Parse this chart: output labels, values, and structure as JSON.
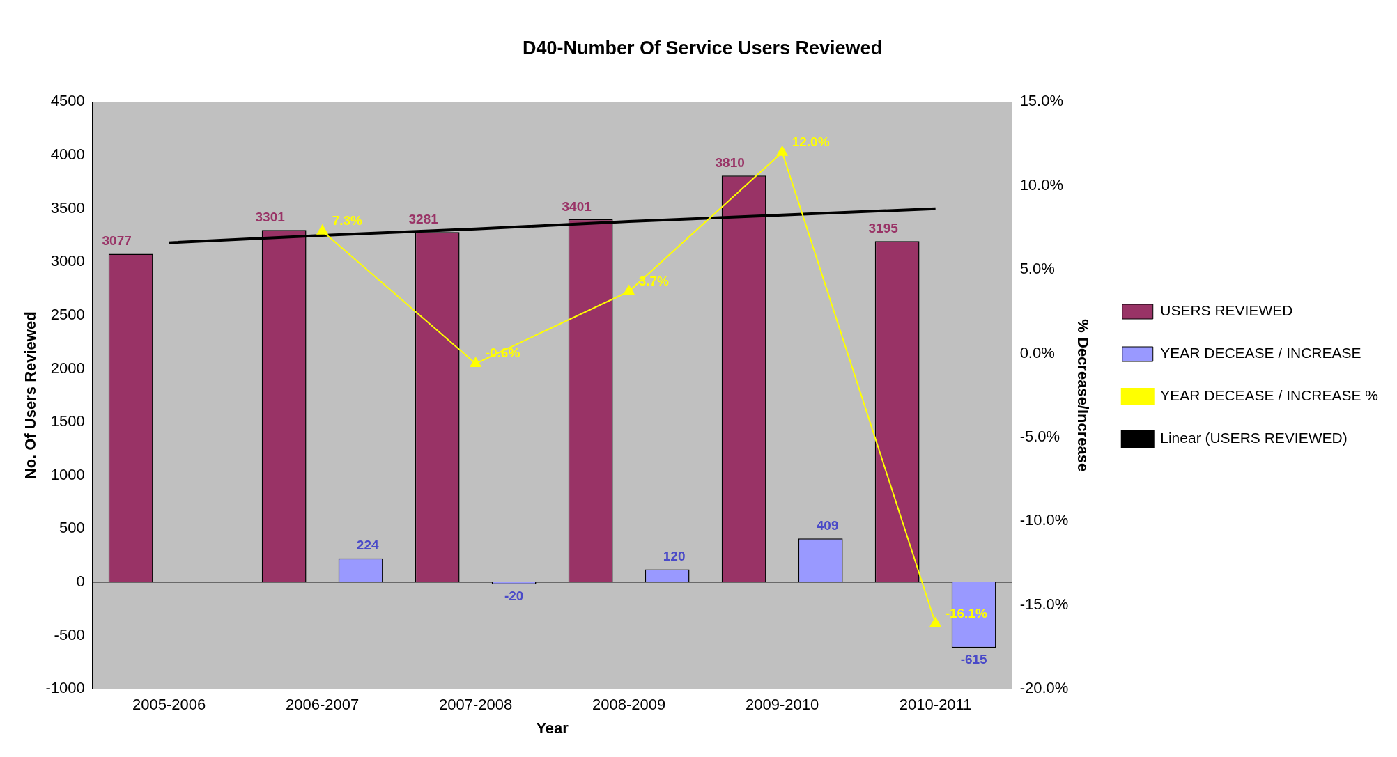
{
  "chart_data": {
    "type": "bar",
    "title": "D40-Number Of Service Users Reviewed",
    "xlabel": "Year",
    "ylabel": "No. Of Users Reviewed",
    "y2label": "% Decrease/Increase",
    "categories": [
      "2005-2006",
      "2006-2007",
      "2007-2008",
      "2008-2009",
      "2009-2010",
      "2010-2011"
    ],
    "series": [
      {
        "name": "USERS REVIEWED",
        "color": "#993366",
        "values": [
          3077,
          3301,
          3281,
          3401,
          3810,
          3195
        ],
        "value_labels": [
          "3077",
          "3301",
          "3281",
          "3401",
          "3810",
          "3195"
        ]
      },
      {
        "name": "YEAR DECEASE / INCREASE",
        "color": "#9999ff",
        "values": [
          null,
          224,
          -20,
          120,
          409,
          -615
        ],
        "value_labels": [
          null,
          "224",
          "-20",
          "120",
          "409",
          "-615"
        ]
      },
      {
        "name": "YEAR DECEASE / INCREASE %",
        "type": "line",
        "axis": "y2",
        "color": "#ffff00",
        "marker": "triangle",
        "values": [
          null,
          7.3,
          -0.6,
          3.7,
          12.0,
          -16.1
        ],
        "value_labels": [
          null,
          "7.3%",
          "-0.6%",
          "3.7%",
          "12.0%",
          "-16.1%"
        ]
      },
      {
        "name": "Linear (USERS REVIEWED)",
        "type": "line",
        "color": "#000000",
        "marker": "none",
        "values": [
          3180,
          3250,
          3310,
          3380,
          3440,
          3500
        ]
      }
    ],
    "ylim": [
      -1000,
      4500
    ],
    "yticks": [
      -1000,
      -500,
      0,
      500,
      1000,
      1500,
      2000,
      2500,
      3000,
      3500,
      4000,
      4500
    ],
    "y2lim": [
      -20,
      15
    ],
    "y2ticks": [
      {
        "value": -20,
        "label": "-20.0%"
      },
      {
        "value": -15,
        "label": "-15.0%"
      },
      {
        "value": -10,
        "label": "-10.0%"
      },
      {
        "value": -5,
        "label": "-5.0%"
      },
      {
        "value": 0,
        "label": "0.0%"
      },
      {
        "value": 5,
        "label": "5.0%"
      },
      {
        "value": 10,
        "label": "10.0%"
      },
      {
        "value": 15,
        "label": "15.0%"
      }
    ],
    "legend": "right"
  }
}
